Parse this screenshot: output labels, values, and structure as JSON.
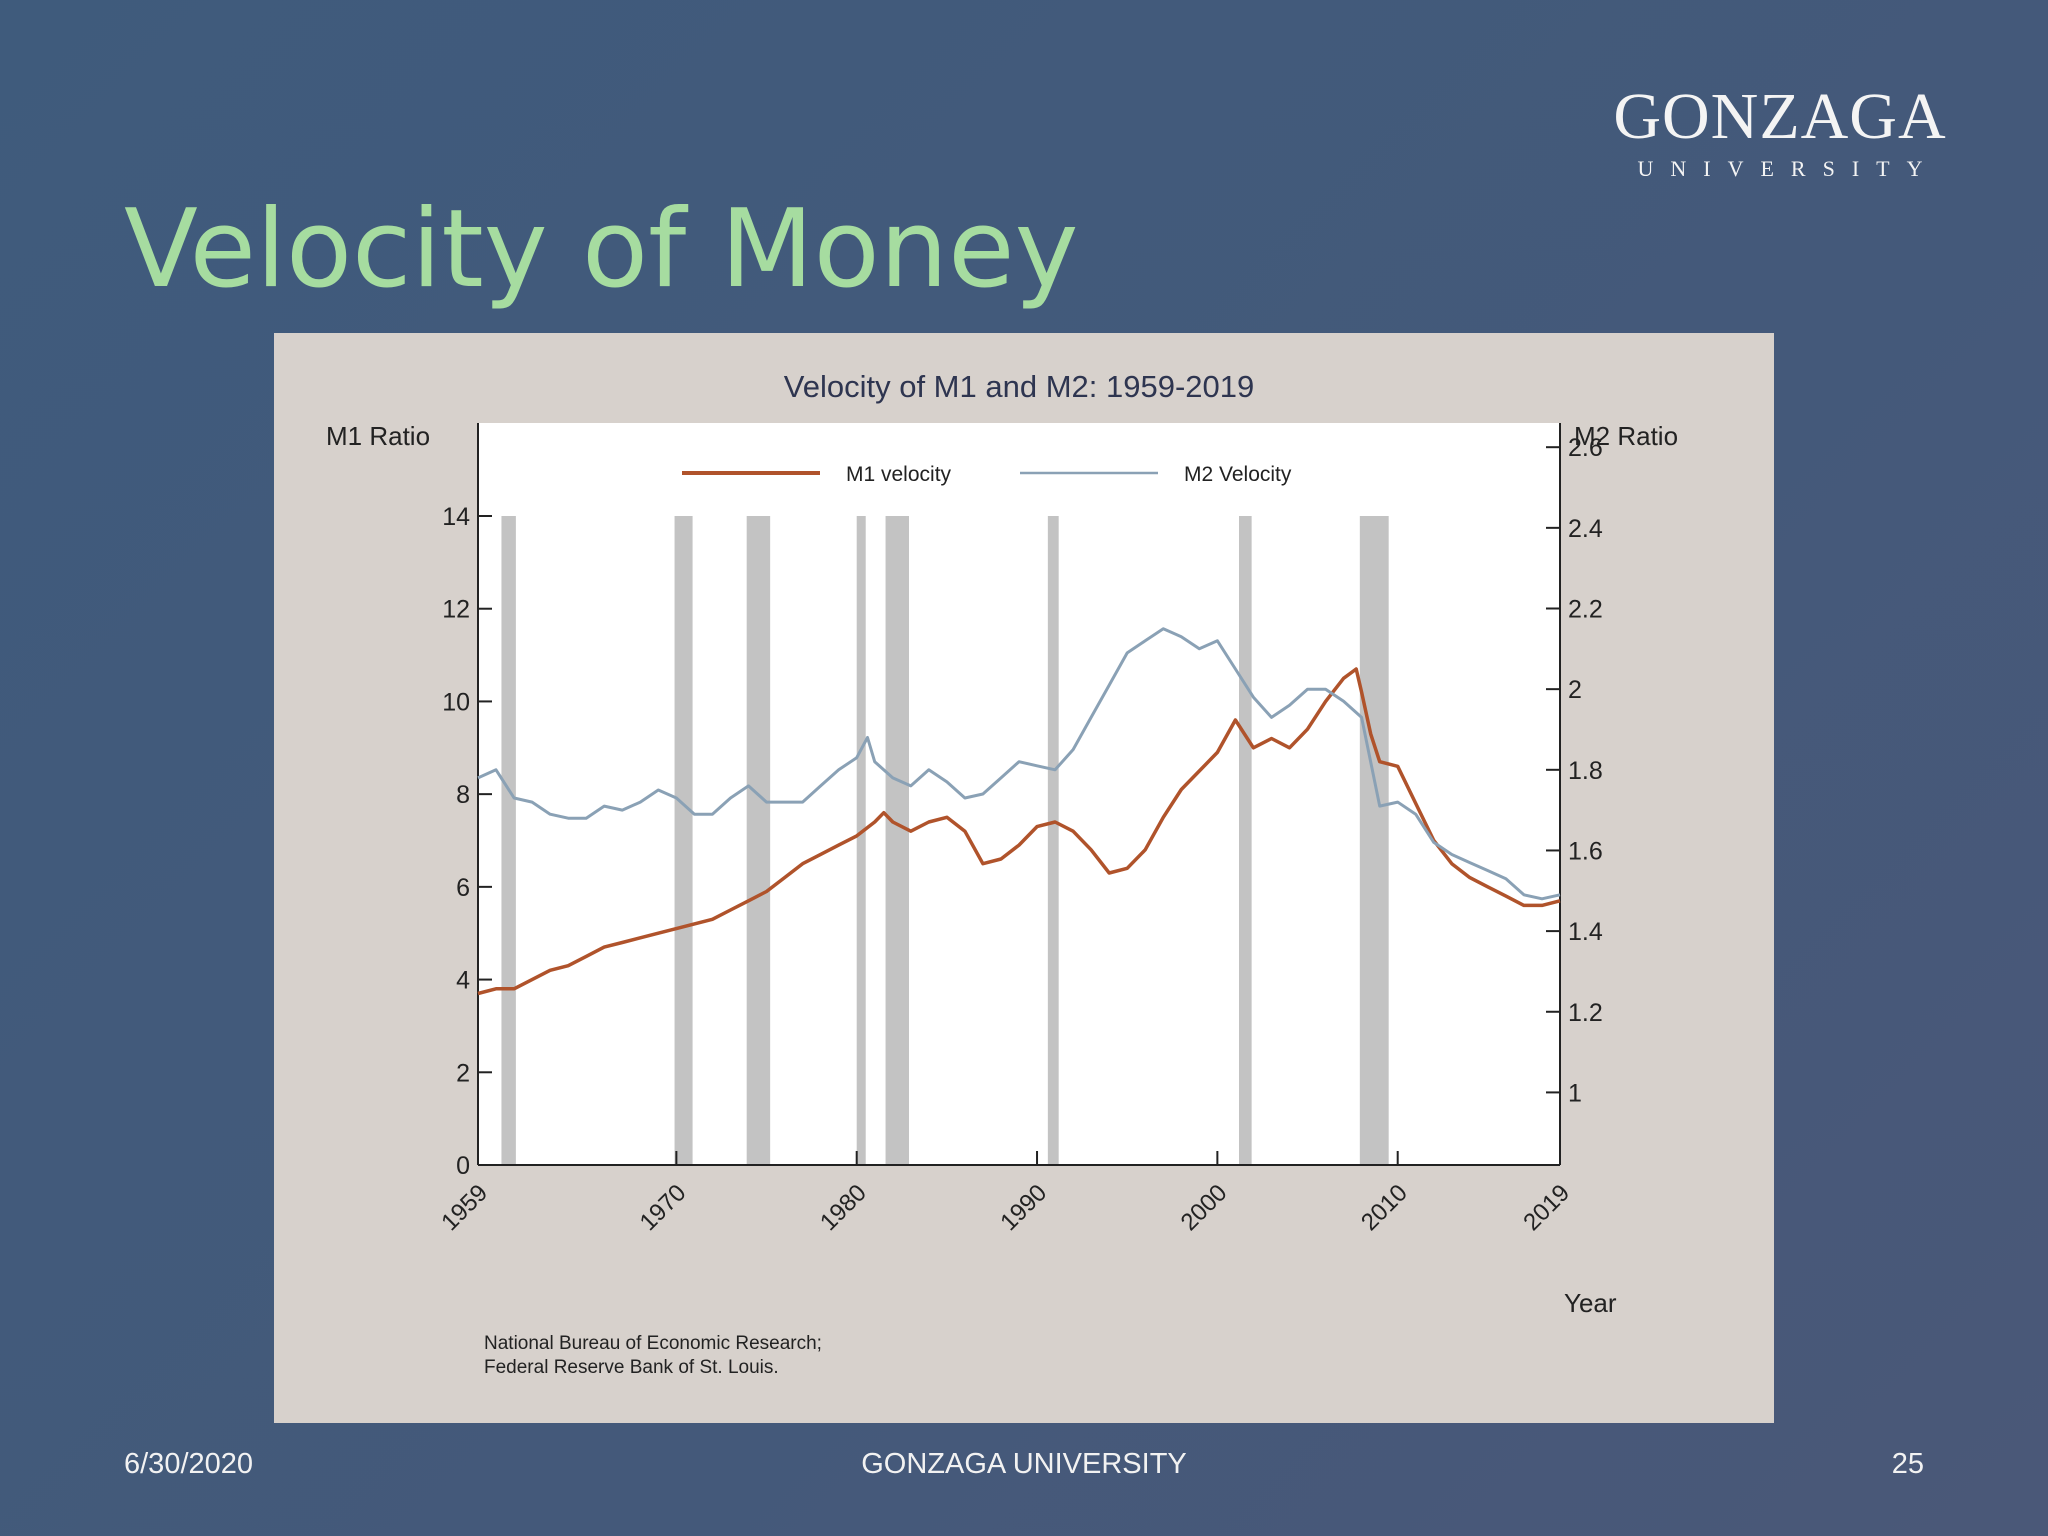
{
  "slide": {
    "title": "Velocity of Money",
    "logo": {
      "main": "GONZAGA",
      "sub": "UNIVERSITY"
    },
    "footer": {
      "date": "6/30/2020",
      "center": "GONZAGA UNIVERSITY",
      "page": "25"
    }
  },
  "colors": {
    "m1": "#b0532b",
    "m2": "#8aa1b5",
    "recession": "#c3c3c3",
    "title": "#a6dca0"
  },
  "chart_data": {
    "type": "line",
    "title": "Velocity of M1 and M2: 1959-2019",
    "xlabel": "Year",
    "ylabel_left": "M1 Ratio",
    "ylabel_right": "M2 Ratio",
    "source": [
      "National Bureau of Economic Research;",
      "Federal Reserve Bank of St. Louis."
    ],
    "xlim": [
      1959,
      2019
    ],
    "xticks": [
      1959,
      1970,
      1980,
      1990,
      2000,
      2010,
      2019
    ],
    "ylim_left": [
      0,
      14
    ],
    "yticks_left": [
      0,
      2,
      4,
      6,
      8,
      10,
      12,
      14
    ],
    "ylim_right": [
      0.82,
      2.66
    ],
    "yticks_right": [
      1,
      1.2,
      1.4,
      1.6,
      1.8,
      2,
      2.2,
      2.4,
      2.6
    ],
    "legend_position": "top-center",
    "recessions": [
      [
        1960.3,
        1961.1
      ],
      [
        1969.9,
        1970.9
      ],
      [
        1973.9,
        1975.2
      ],
      [
        1980.0,
        1980.5
      ],
      [
        1981.6,
        1982.9
      ],
      [
        1990.6,
        1991.2
      ],
      [
        2001.2,
        2001.9
      ],
      [
        2007.9,
        2009.5
      ]
    ],
    "series": [
      {
        "name": "M1 velocity",
        "axis": "left",
        "points": [
          [
            1959,
            3.7
          ],
          [
            1960,
            3.8
          ],
          [
            1961,
            3.8
          ],
          [
            1962,
            4.0
          ],
          [
            1963,
            4.2
          ],
          [
            1964,
            4.3
          ],
          [
            1965,
            4.5
          ],
          [
            1966,
            4.7
          ],
          [
            1967,
            4.8
          ],
          [
            1968,
            4.9
          ],
          [
            1969,
            5.0
          ],
          [
            1970,
            5.1
          ],
          [
            1971,
            5.2
          ],
          [
            1972,
            5.3
          ],
          [
            1973,
            5.5
          ],
          [
            1974,
            5.7
          ],
          [
            1975,
            5.9
          ],
          [
            1976,
            6.2
          ],
          [
            1977,
            6.5
          ],
          [
            1978,
            6.7
          ],
          [
            1979,
            6.9
          ],
          [
            1980,
            7.1
          ],
          [
            1981,
            7.4
          ],
          [
            1981.5,
            7.6
          ],
          [
            1982,
            7.4
          ],
          [
            1983,
            7.2
          ],
          [
            1984,
            7.4
          ],
          [
            1985,
            7.5
          ],
          [
            1986,
            7.2
          ],
          [
            1987,
            6.5
          ],
          [
            1988,
            6.6
          ],
          [
            1989,
            6.9
          ],
          [
            1990,
            7.3
          ],
          [
            1991,
            7.4
          ],
          [
            1992,
            7.2
          ],
          [
            1993,
            6.8
          ],
          [
            1994,
            6.3
          ],
          [
            1995,
            6.4
          ],
          [
            1996,
            6.8
          ],
          [
            1997,
            7.5
          ],
          [
            1998,
            8.1
          ],
          [
            1999,
            8.5
          ],
          [
            2000,
            8.9
          ],
          [
            2001,
            9.6
          ],
          [
            2002,
            9.0
          ],
          [
            2003,
            9.2
          ],
          [
            2004,
            9.0
          ],
          [
            2005,
            9.4
          ],
          [
            2006,
            10.0
          ],
          [
            2007,
            10.5
          ],
          [
            2007.7,
            10.7
          ],
          [
            2008,
            10.2
          ],
          [
            2008.5,
            9.3
          ],
          [
            2009,
            8.7
          ],
          [
            2010,
            8.6
          ],
          [
            2011,
            7.8
          ],
          [
            2012,
            7.0
          ],
          [
            2013,
            6.5
          ],
          [
            2014,
            6.2
          ],
          [
            2015,
            6.0
          ],
          [
            2016,
            5.8
          ],
          [
            2017,
            5.6
          ],
          [
            2018,
            5.6
          ],
          [
            2019,
            5.7
          ]
        ]
      },
      {
        "name": "M2 Velocity",
        "axis": "right",
        "points": [
          [
            1959,
            1.78
          ],
          [
            1960,
            1.8
          ],
          [
            1961,
            1.73
          ],
          [
            1962,
            1.72
          ],
          [
            1963,
            1.69
          ],
          [
            1964,
            1.68
          ],
          [
            1965,
            1.68
          ],
          [
            1966,
            1.71
          ],
          [
            1967,
            1.7
          ],
          [
            1968,
            1.72
          ],
          [
            1969,
            1.75
          ],
          [
            1970,
            1.73
          ],
          [
            1971,
            1.69
          ],
          [
            1972,
            1.69
          ],
          [
            1973,
            1.73
          ],
          [
            1974,
            1.76
          ],
          [
            1975,
            1.72
          ],
          [
            1976,
            1.72
          ],
          [
            1977,
            1.72
          ],
          [
            1978,
            1.76
          ],
          [
            1979,
            1.8
          ],
          [
            1980,
            1.83
          ],
          [
            1980.6,
            1.88
          ],
          [
            1981,
            1.82
          ],
          [
            1982,
            1.78
          ],
          [
            1983,
            1.76
          ],
          [
            1984,
            1.8
          ],
          [
            1985,
            1.77
          ],
          [
            1986,
            1.73
          ],
          [
            1987,
            1.74
          ],
          [
            1988,
            1.78
          ],
          [
            1989,
            1.82
          ],
          [
            1990,
            1.81
          ],
          [
            1991,
            1.8
          ],
          [
            1992,
            1.85
          ],
          [
            1993,
            1.93
          ],
          [
            1994,
            2.01
          ],
          [
            1995,
            2.09
          ],
          [
            1996,
            2.12
          ],
          [
            1997,
            2.15
          ],
          [
            1998,
            2.13
          ],
          [
            1999,
            2.1
          ],
          [
            2000,
            2.12
          ],
          [
            2001,
            2.05
          ],
          [
            2002,
            1.98
          ],
          [
            2003,
            1.93
          ],
          [
            2004,
            1.96
          ],
          [
            2005,
            2.0
          ],
          [
            2006,
            2.0
          ],
          [
            2007,
            1.97
          ],
          [
            2008,
            1.93
          ],
          [
            2009,
            1.71
          ],
          [
            2010,
            1.72
          ],
          [
            2011,
            1.69
          ],
          [
            2012,
            1.62
          ],
          [
            2013,
            1.59
          ],
          [
            2014,
            1.57
          ],
          [
            2015,
            1.55
          ],
          [
            2016,
            1.53
          ],
          [
            2017,
            1.49
          ],
          [
            2018,
            1.48
          ],
          [
            2019,
            1.49
          ]
        ]
      }
    ]
  }
}
